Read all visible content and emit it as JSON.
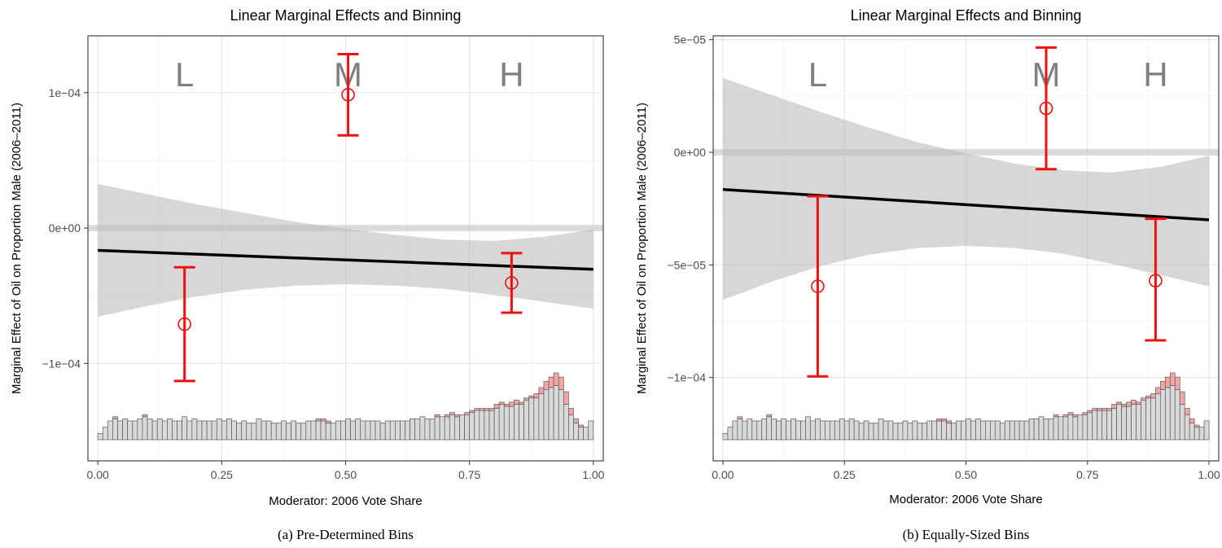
{
  "chart_data": [
    {
      "type": "line",
      "title": "Linear Marginal Effects and Binning",
      "xlabel": "Moderator: 2006 Vote Share",
      "ylabel": "Marginal Effect of Oil on Proportion Male (2006–2011)",
      "caption": "(a) Pre-Determined Bins",
      "xlim": [
        -0.02,
        1.02
      ],
      "ylim": [
        -0.000172,
        0.000142
      ],
      "x_ticks": [
        0,
        0.25,
        0.5,
        0.75,
        1
      ],
      "x_tick_labels": [
        "0.00",
        "0.25",
        "0.50",
        "0.75",
        "1.00"
      ],
      "y_ticks": [
        -0.0001,
        0,
        0.0001
      ],
      "y_tick_labels": [
        "−1e−04",
        "0e+00",
        "1e−04"
      ],
      "grid": true,
      "zero_line": 0,
      "series": [
        {
          "x": [
            0,
            1
          ],
          "y": [
            -1.65e-05,
            -3.05e-05
          ]
        }
      ],
      "ci_band": {
        "x": [
          0,
          0.1,
          0.2,
          0.3,
          0.4,
          0.5,
          0.6,
          0.7,
          0.8,
          0.9,
          1.0
        ],
        "lower": [
          -6.55e-05,
          -5.75e-05,
          -5.05e-05,
          -4.55e-05,
          -4.25e-05,
          -4.15e-05,
          -4.25e-05,
          -4.5e-05,
          -4.95e-05,
          -5.45e-05,
          -5.95e-05
        ],
        "upper": [
          3.25e-05,
          2.5e-05,
          1.75e-05,
          1.1e-05,
          4.5e-06,
          -5e-07,
          -5e-06,
          -8.5e-06,
          -9.5e-06,
          -6.5e-06,
          -1e-06
        ]
      },
      "bin_estimates": [
        {
          "label": "L",
          "x": 0.175,
          "y": -7.1e-05,
          "lower": -0.000113,
          "upper": -2.9e-05
        },
        {
          "label": "M",
          "x": 0.505,
          "y": 9.85e-05,
          "lower": 6.85e-05,
          "upper": 0.0001285
        },
        {
          "label": "H",
          "x": 0.835,
          "y": -4.05e-05,
          "lower": -6.25e-05,
          "upper": -1.85e-05
        }
      ],
      "bin_label_x": [
        0.175,
        0.505,
        0.835
      ],
      "histogram": {
        "bins": 100,
        "gray": [
          3,
          6,
          9,
          10,
          9,
          10,
          9,
          9,
          10,
          11,
          10,
          9,
          10,
          9,
          10,
          9,
          9,
          11,
          9,
          10,
          9,
          9,
          9,
          9,
          10,
          9,
          10,
          9,
          8,
          9,
          8,
          8,
          10,
          9,
          9,
          8,
          8,
          9,
          8,
          9,
          8,
          8,
          9,
          9,
          9,
          9,
          8,
          8,
          9,
          9,
          10,
          9,
          10,
          9,
          9,
          9,
          9,
          8,
          9,
          9,
          9,
          9,
          9,
          10,
          10,
          11,
          10,
          10,
          11,
          11,
          11,
          12,
          11,
          12,
          12,
          13,
          14,
          14,
          14,
          14,
          15,
          17,
          16,
          16,
          17,
          17,
          19,
          20,
          20,
          22,
          24,
          25,
          26,
          24,
          17,
          12,
          8,
          6,
          6,
          9
        ],
        "red": [
          0,
          0,
          0,
          1,
          0,
          0,
          0,
          0,
          0,
          1,
          0,
          0,
          0,
          0,
          0,
          0,
          0,
          0,
          0,
          0,
          0,
          0,
          0,
          0,
          0,
          0,
          0,
          0,
          0,
          0,
          0,
          0,
          0,
          0,
          0,
          0,
          0,
          0,
          0,
          0,
          0,
          0,
          0,
          0,
          1,
          1,
          1,
          0,
          0,
          0,
          0,
          0,
          0,
          0,
          0,
          0,
          0,
          0,
          0,
          0,
          0,
          0,
          0,
          0,
          0,
          0,
          0,
          0,
          1,
          0,
          1,
          1,
          1,
          0,
          1,
          1,
          1,
          1,
          1,
          1,
          2,
          1,
          1,
          2,
          2,
          1,
          1,
          1,
          2,
          3,
          4,
          5,
          6,
          6,
          6,
          3,
          2,
          1,
          0,
          0
        ]
      }
    },
    {
      "type": "line",
      "title": "Linear Marginal Effects and Binning",
      "xlabel": "Moderator: 2006 Vote Share",
      "ylabel": "Marginal Effect of Oil on Proportion Male (2006–2011)",
      "caption": "(b) Equally-Sized Bins",
      "xlim": [
        -0.02,
        1.02
      ],
      "ylim": [
        -0.000137,
        5.17e-05
      ],
      "x_ticks": [
        0,
        0.25,
        0.5,
        0.75,
        1
      ],
      "x_tick_labels": [
        "0.00",
        "0.25",
        "0.50",
        "0.75",
        "1.00"
      ],
      "y_ticks": [
        -0.0001,
        -5e-05,
        0,
        5e-05
      ],
      "y_tick_labels": [
        "−1e−04",
        "−5e−05",
        "0e+00",
        "5e−05"
      ],
      "grid": true,
      "zero_line": 0,
      "series": [
        {
          "x": [
            0,
            1
          ],
          "y": [
            -1.65e-05,
            -3e-05
          ]
        }
      ],
      "ci_band": {
        "x": [
          0,
          0.1,
          0.2,
          0.3,
          0.4,
          0.5,
          0.6,
          0.7,
          0.8,
          0.9,
          1.0
        ],
        "lower": [
          -6.55e-05,
          -5.75e-05,
          -5.05e-05,
          -4.55e-05,
          -4.25e-05,
          -4.15e-05,
          -4.25e-05,
          -4.5e-05,
          -4.95e-05,
          -5.45e-05,
          -5.95e-05
        ],
        "upper": [
          3.3e-05,
          2.55e-05,
          1.8e-05,
          1.1e-05,
          4.5e-06,
          -5e-07,
          -5e-06,
          -8e-06,
          -9e-06,
          -6.5e-06,
          -1.5e-06
        ]
      },
      "bin_estimates": [
        {
          "label": "L",
          "x": 0.195,
          "y": -5.95e-05,
          "lower": -9.95e-05,
          "upper": -1.95e-05
        },
        {
          "label": "M",
          "x": 0.665,
          "y": 1.95e-05,
          "lower": -7.5e-06,
          "upper": 4.65e-05
        },
        {
          "label": "H",
          "x": 0.89,
          "y": -5.7e-05,
          "lower": -8.35e-05,
          "upper": -2.95e-05
        }
      ],
      "bin_label_x": [
        0.195,
        0.665,
        0.89
      ],
      "histogram": {
        "bins": 100,
        "gray": [
          3,
          6,
          9,
          10,
          9,
          10,
          9,
          9,
          10,
          11,
          10,
          9,
          10,
          9,
          10,
          9,
          9,
          11,
          9,
          10,
          9,
          9,
          9,
          9,
          10,
          9,
          10,
          9,
          8,
          9,
          8,
          8,
          10,
          9,
          9,
          8,
          8,
          9,
          8,
          9,
          8,
          8,
          9,
          9,
          9,
          9,
          8,
          8,
          9,
          9,
          10,
          9,
          10,
          9,
          9,
          9,
          9,
          8,
          9,
          9,
          9,
          9,
          9,
          10,
          10,
          11,
          10,
          10,
          11,
          11,
          11,
          12,
          11,
          12,
          12,
          13,
          14,
          14,
          14,
          14,
          15,
          17,
          16,
          16,
          17,
          17,
          19,
          20,
          20,
          22,
          24,
          25,
          26,
          24,
          17,
          12,
          8,
          6,
          6,
          9
        ],
        "red": [
          0,
          0,
          0,
          1,
          0,
          0,
          0,
          0,
          0,
          1,
          0,
          0,
          0,
          0,
          0,
          0,
          0,
          0,
          0,
          0,
          0,
          0,
          0,
          0,
          0,
          0,
          0,
          0,
          0,
          0,
          0,
          0,
          0,
          0,
          0,
          0,
          0,
          0,
          0,
          0,
          0,
          0,
          0,
          0,
          1,
          1,
          1,
          0,
          0,
          0,
          0,
          0,
          0,
          0,
          0,
          0,
          0,
          0,
          0,
          0,
          0,
          0,
          0,
          0,
          0,
          0,
          0,
          0,
          1,
          0,
          1,
          1,
          1,
          0,
          1,
          1,
          1,
          1,
          1,
          1,
          2,
          1,
          1,
          2,
          2,
          1,
          1,
          1,
          2,
          3,
          4,
          5,
          6,
          6,
          6,
          3,
          2,
          1,
          0,
          0
        ]
      }
    }
  ]
}
